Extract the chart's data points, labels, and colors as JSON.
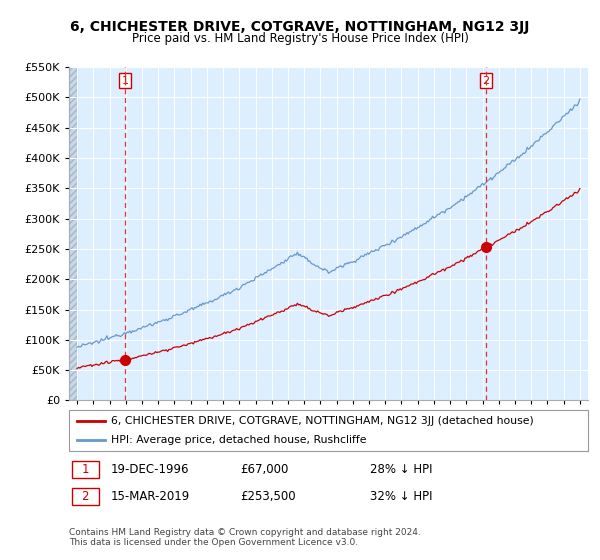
{
  "title": "6, CHICHESTER DRIVE, COTGRAVE, NOTTINGHAM, NG12 3JJ",
  "subtitle": "Price paid vs. HM Land Registry's House Price Index (HPI)",
  "legend_entry1": "6, CHICHESTER DRIVE, COTGRAVE, NOTTINGHAM, NG12 3JJ (detached house)",
  "legend_entry2": "HPI: Average price, detached house, Rushcliffe",
  "annotation1_date": "19-DEC-1996",
  "annotation1_price": "£67,000",
  "annotation1_hpi": "28% ↓ HPI",
  "annotation2_date": "15-MAR-2019",
  "annotation2_price": "£253,500",
  "annotation2_hpi": "32% ↓ HPI",
  "footnote": "Contains HM Land Registry data © Crown copyright and database right 2024.\nThis data is licensed under the Open Government Licence v3.0.",
  "hpi_color": "#6699cc",
  "price_color": "#cc0000",
  "marker_color": "#cc0000",
  "vline_color": "#dd3333",
  "plot_bg": "#ddeeff",
  "grid_color": "#ffffff",
  "ylim": [
    0,
    550000
  ],
  "yticks": [
    0,
    50000,
    100000,
    150000,
    200000,
    250000,
    300000,
    350000,
    400000,
    450000,
    500000,
    550000
  ],
  "sale1_year": 1996.96,
  "sale1_value": 67000,
  "sale2_year": 2019.21,
  "sale2_value": 253500,
  "xmin": 1993.5,
  "xmax": 2025.5,
  "data_xstart": 1994.0
}
